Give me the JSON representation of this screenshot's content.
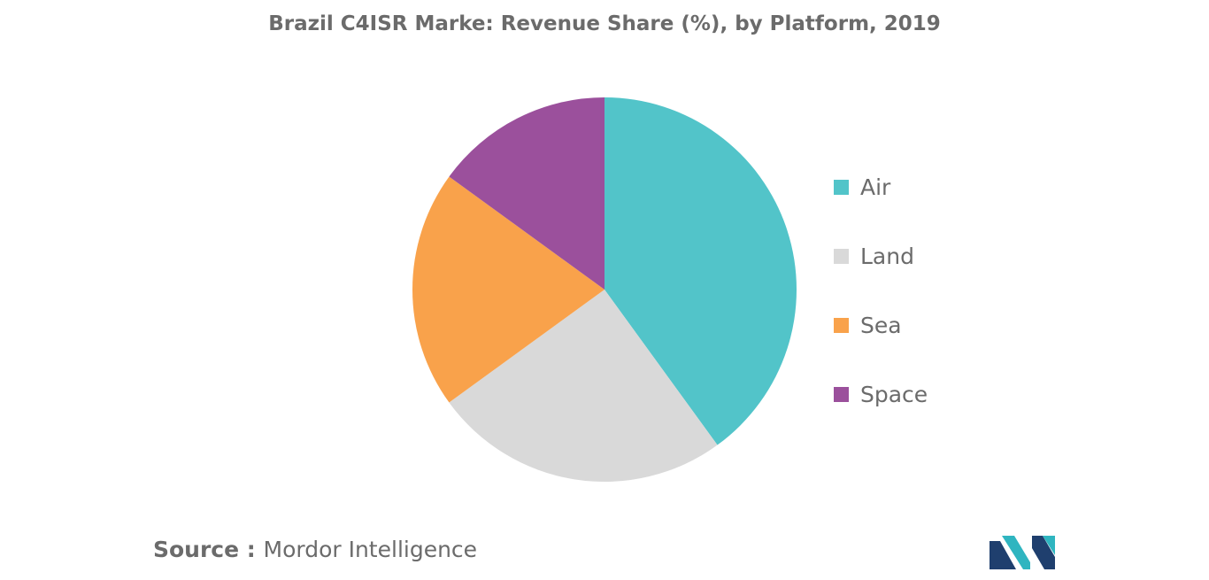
{
  "title": "Brazil C4ISR Marke: Revenue Share (%), by Platform, 2019",
  "chart_data": {
    "type": "pie",
    "title": "Brazil C4ISR Marke: Revenue Share (%), by Platform, 2019",
    "start_angle_deg": 0,
    "slices": [
      {
        "label": "Air",
        "value": 40,
        "color": "#52c4c9"
      },
      {
        "label": "Land",
        "value": 25,
        "color": "#d9d9d9"
      },
      {
        "label": "Sea",
        "value": 20,
        "color": "#f9a24b"
      },
      {
        "label": "Space",
        "value": 15,
        "color": "#9b509c"
      }
    ],
    "legend_position": "right"
  },
  "legend": {
    "items": [
      {
        "label": "Air",
        "color": "#52c4c9"
      },
      {
        "label": "Land",
        "color": "#d9d9d9"
      },
      {
        "label": "Sea",
        "color": "#f9a24b"
      },
      {
        "label": "Space",
        "color": "#9b509c"
      }
    ]
  },
  "source": {
    "label": "Source",
    "separator": " : ",
    "value": "Mordor Intelligence"
  },
  "logo": {
    "icon": "mordor-intelligence-logo-icon",
    "colors": [
      "#1f3f6e",
      "#2fb5c0"
    ]
  }
}
